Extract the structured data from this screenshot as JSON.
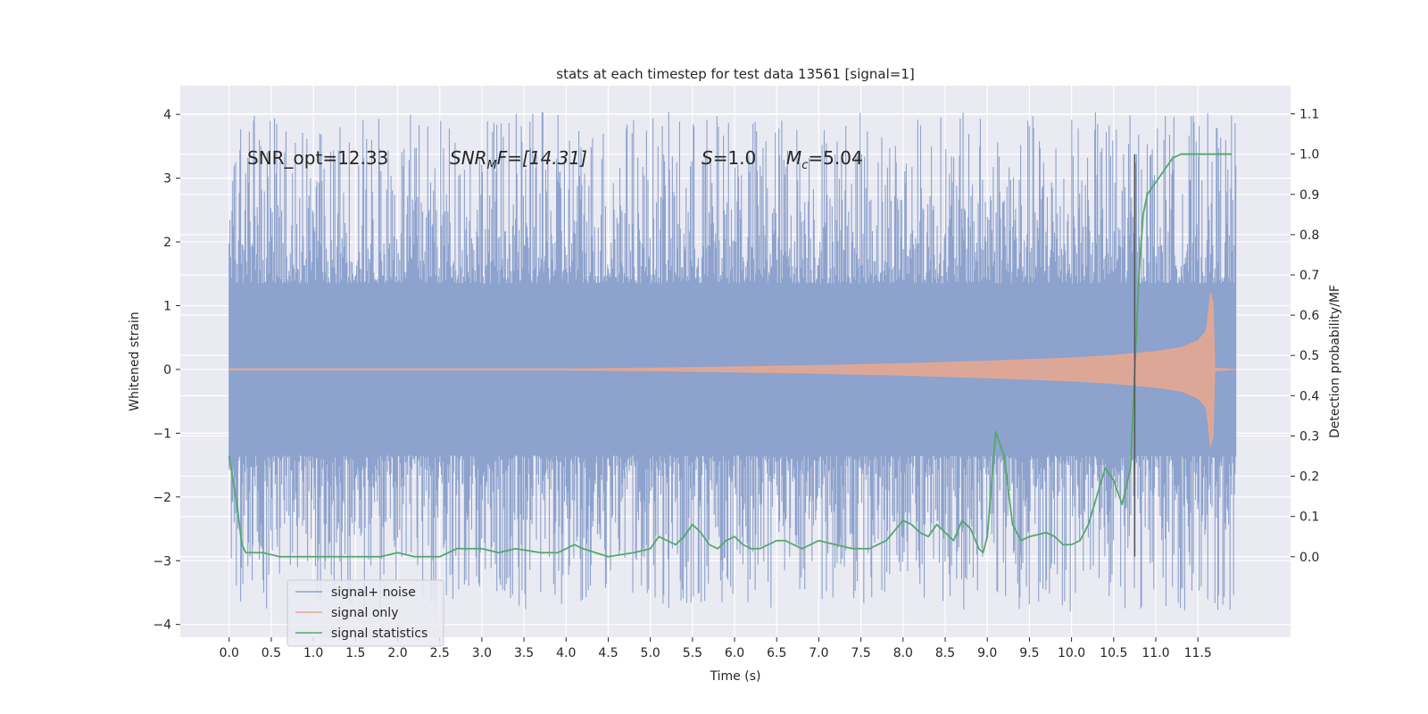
{
  "chart_data": {
    "type": "line",
    "title": "stats at each timestep for test data 13561 [signal=1]",
    "xlabel": "Time (s)",
    "ylabel": "Whitened strain",
    "ylabel_right": "Detection probability/MF",
    "xlim": [
      -0.58,
      12.6
    ],
    "ylim": [
      -4.2,
      4.45
    ],
    "ylim_right": [
      -0.2,
      1.17
    ],
    "x_ticks": [
      "0.0",
      "0.5",
      "1.0",
      "1.5",
      "2.0",
      "2.5",
      "3.0",
      "3.5",
      "4.0",
      "4.5",
      "5.0",
      "5.5",
      "6.0",
      "6.5",
      "7.0",
      "7.5",
      "8.0",
      "8.5",
      "9.0",
      "9.5",
      "10.0",
      "10.5",
      "11.0",
      "11.5"
    ],
    "y_ticks_left": [
      "4",
      "3",
      "2",
      "1",
      "0",
      "−1",
      "−2",
      "−3",
      "−4"
    ],
    "y_ticks_right": [
      "1.1",
      "1.0",
      "0.9",
      "0.8",
      "0.7",
      "0.6",
      "0.5",
      "0.4",
      "0.3",
      "0.2",
      "0.1",
      "0.0"
    ],
    "grid": true,
    "legend_position": "lower-left",
    "annotations": {
      "snr_opt": "SNR_opt=12.33",
      "snr_mf_sym": "SNR",
      "snr_mf_sub": "M",
      "snr_mf_rest": "F=[14.31]",
      "s_sym": "S",
      "s_rest": "=1.0",
      "mc_sym": "M",
      "mc_sub": "c",
      "mc_rest": "=5.04"
    },
    "vertical_marker_x": 10.75,
    "series": [
      {
        "name": "signal+ noise",
        "color": "#8da2cd",
        "axis": "left",
        "description_values": {
          "x_start": 0.0,
          "x_end": 11.95,
          "core_abs_max": 1.35,
          "peak_max": 4.1,
          "peak_min": -3.85
        }
      },
      {
        "name": "signal only",
        "color": "#e5a791",
        "axis": "left",
        "points": [
          [
            0.0,
            0.01
          ],
          [
            4.0,
            0.01
          ],
          [
            5.0,
            0.02
          ],
          [
            6.0,
            0.04
          ],
          [
            7.0,
            0.06
          ],
          [
            8.0,
            0.09
          ],
          [
            9.0,
            0.13
          ],
          [
            10.0,
            0.18
          ],
          [
            10.5,
            0.22
          ],
          [
            11.0,
            0.28
          ],
          [
            11.3,
            0.34
          ],
          [
            11.5,
            0.45
          ],
          [
            11.6,
            0.6
          ],
          [
            11.65,
            1.2
          ],
          [
            11.68,
            -1.05
          ],
          [
            11.7,
            0.02
          ],
          [
            11.95,
            0.0
          ]
        ]
      },
      {
        "name": "signal statistics",
        "color": "#55a868",
        "axis": "right",
        "points": [
          [
            0.0,
            0.25
          ],
          [
            0.1,
            0.12
          ],
          [
            0.15,
            0.03
          ],
          [
            0.2,
            0.01
          ],
          [
            0.3,
            0.01
          ],
          [
            0.4,
            0.01
          ],
          [
            0.6,
            0.0
          ],
          [
            0.8,
            0.0
          ],
          [
            1.0,
            0.0
          ],
          [
            1.4,
            0.0
          ],
          [
            1.8,
            0.0
          ],
          [
            2.0,
            0.01
          ],
          [
            2.2,
            0.0
          ],
          [
            2.5,
            0.0
          ],
          [
            2.7,
            0.02
          ],
          [
            3.0,
            0.02
          ],
          [
            3.2,
            0.01
          ],
          [
            3.4,
            0.02
          ],
          [
            3.7,
            0.01
          ],
          [
            3.9,
            0.01
          ],
          [
            4.1,
            0.03
          ],
          [
            4.2,
            0.02
          ],
          [
            4.5,
            0.0
          ],
          [
            4.8,
            0.01
          ],
          [
            5.0,
            0.02
          ],
          [
            5.1,
            0.05
          ],
          [
            5.3,
            0.03
          ],
          [
            5.4,
            0.05
          ],
          [
            5.5,
            0.08
          ],
          [
            5.6,
            0.06
          ],
          [
            5.7,
            0.03
          ],
          [
            5.8,
            0.02
          ],
          [
            5.9,
            0.04
          ],
          [
            6.0,
            0.05
          ],
          [
            6.1,
            0.03
          ],
          [
            6.2,
            0.02
          ],
          [
            6.3,
            0.02
          ],
          [
            6.4,
            0.03
          ],
          [
            6.5,
            0.04
          ],
          [
            6.6,
            0.04
          ],
          [
            6.7,
            0.03
          ],
          [
            6.8,
            0.02
          ],
          [
            6.9,
            0.03
          ],
          [
            7.0,
            0.04
          ],
          [
            7.2,
            0.03
          ],
          [
            7.4,
            0.02
          ],
          [
            7.6,
            0.02
          ],
          [
            7.8,
            0.04
          ],
          [
            8.0,
            0.09
          ],
          [
            8.1,
            0.08
          ],
          [
            8.2,
            0.06
          ],
          [
            8.3,
            0.05
          ],
          [
            8.4,
            0.08
          ],
          [
            8.5,
            0.06
          ],
          [
            8.6,
            0.04
          ],
          [
            8.7,
            0.09
          ],
          [
            8.8,
            0.07
          ],
          [
            8.9,
            0.02
          ],
          [
            8.95,
            0.01
          ],
          [
            9.0,
            0.05
          ],
          [
            9.1,
            0.31
          ],
          [
            9.2,
            0.25
          ],
          [
            9.3,
            0.08
          ],
          [
            9.4,
            0.04
          ],
          [
            9.5,
            0.05
          ],
          [
            9.7,
            0.06
          ],
          [
            9.8,
            0.05
          ],
          [
            9.9,
            0.03
          ],
          [
            10.0,
            0.03
          ],
          [
            10.1,
            0.04
          ],
          [
            10.2,
            0.08
          ],
          [
            10.3,
            0.15
          ],
          [
            10.4,
            0.22
          ],
          [
            10.5,
            0.19
          ],
          [
            10.6,
            0.13
          ],
          [
            10.7,
            0.22
          ],
          [
            10.8,
            0.7
          ],
          [
            10.85,
            0.85
          ],
          [
            10.9,
            0.9
          ],
          [
            11.0,
            0.93
          ],
          [
            11.1,
            0.96
          ],
          [
            11.2,
            0.99
          ],
          [
            11.3,
            1.0
          ],
          [
            11.5,
            1.0
          ],
          [
            11.9,
            1.0
          ]
        ]
      }
    ]
  }
}
